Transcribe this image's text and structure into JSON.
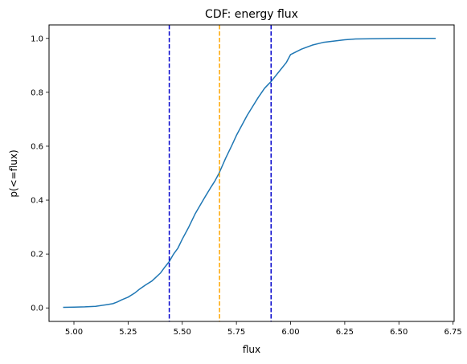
{
  "chart_data": {
    "type": "line",
    "title": "CDF: energy flux",
    "xlabel": "flux",
    "ylabel": "p(<=flux)",
    "xlim": [
      4.885,
      6.755
    ],
    "ylim": [
      -0.05,
      1.05
    ],
    "x_ticks": [
      "5.00",
      "5.25",
      "5.50",
      "5.75",
      "6.00",
      "6.25",
      "6.50",
      "6.75"
    ],
    "x_tick_values": [
      5.0,
      5.25,
      5.5,
      5.75,
      6.0,
      6.25,
      6.5,
      6.75
    ],
    "y_ticks": [
      "0.0",
      "0.2",
      "0.4",
      "0.6",
      "0.8",
      "1.0"
    ],
    "y_tick_values": [
      0.0,
      0.2,
      0.4,
      0.6,
      0.8,
      1.0
    ],
    "grid": false,
    "legend": "none",
    "series": [
      {
        "color": "#1f77b4",
        "x": [
          4.95,
          5.0,
          5.05,
          5.1,
          5.15,
          5.18,
          5.2,
          5.22,
          5.25,
          5.28,
          5.3,
          5.33,
          5.36,
          5.38,
          5.4,
          5.42,
          5.44,
          5.46,
          5.48,
          5.5,
          5.53,
          5.56,
          5.6,
          5.63,
          5.65,
          5.67,
          5.7,
          5.73,
          5.75,
          5.8,
          5.85,
          5.88,
          5.91,
          5.95,
          5.98,
          6.0,
          6.05,
          6.1,
          6.15,
          6.2,
          6.25,
          6.3,
          6.4,
          6.5,
          6.6,
          6.67
        ],
        "y": [
          0.002,
          0.003,
          0.004,
          0.006,
          0.012,
          0.016,
          0.022,
          0.03,
          0.04,
          0.055,
          0.068,
          0.085,
          0.1,
          0.115,
          0.13,
          0.152,
          0.172,
          0.2,
          0.222,
          0.255,
          0.3,
          0.35,
          0.405,
          0.445,
          0.47,
          0.5,
          0.555,
          0.605,
          0.64,
          0.715,
          0.78,
          0.815,
          0.84,
          0.88,
          0.91,
          0.94,
          0.96,
          0.975,
          0.985,
          0.99,
          0.995,
          0.998,
          0.999,
          1.0,
          1.0,
          1.0
        ]
      }
    ],
    "vlines": [
      {
        "x": 5.44,
        "color": "#0000cc",
        "style": "dashed"
      },
      {
        "x": 5.672,
        "color": "#ffa500",
        "style": "dashed"
      },
      {
        "x": 5.91,
        "color": "#0000cc",
        "style": "dashed"
      }
    ],
    "axis_color": "#000000"
  }
}
